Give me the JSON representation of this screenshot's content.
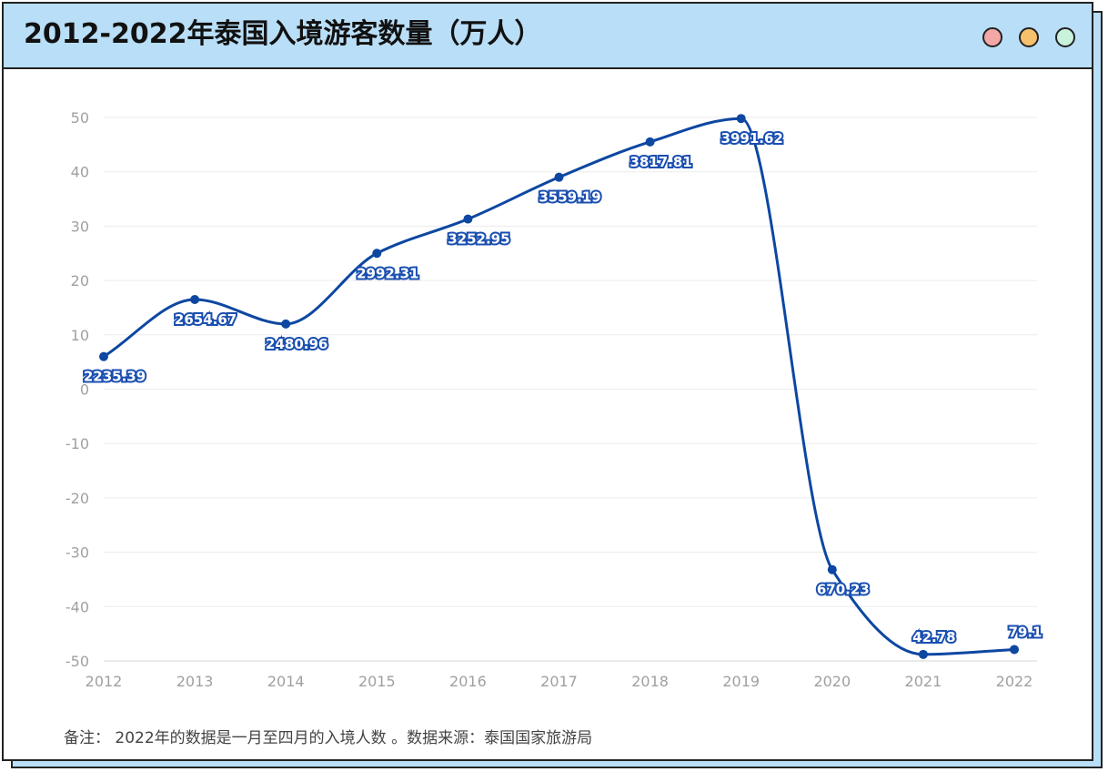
{
  "header": {
    "title": "2012-2022年泰国入境游客数量（万人）",
    "window_dots": [
      {
        "name": "close-dot",
        "color": "#f4a7a7"
      },
      {
        "name": "minimize-dot",
        "color": "#f6c06d"
      },
      {
        "name": "maximize-dot",
        "color": "#c8f2dc"
      }
    ]
  },
  "footnote": "备注： 2022年的数据是一月至四月的入境人数 。数据来源：泰国国家旅游局",
  "colors": {
    "header_bg": "#b9def7",
    "line": "#0d47a1",
    "grid": "#ebebeb"
  },
  "chart_data": {
    "type": "line",
    "title": "2012-2022年泰国入境游客数量（万人）",
    "x": [
      "2012",
      "2013",
      "2014",
      "2015",
      "2016",
      "2017",
      "2018",
      "2019",
      "2020",
      "2021",
      "2022"
    ],
    "series": [
      {
        "values": [
          6,
          16.5,
          12,
          25,
          31.3,
          39,
          45.5,
          49.8,
          -33.2,
          -48.8,
          -47.9
        ],
        "labels": [
          "2235.39",
          "2654.67",
          "2480.96",
          "2992.31",
          "3252.95",
          "3559.19",
          "3817.81",
          "3991.62",
          "670.23",
          "42.78",
          "79.1"
        ]
      }
    ],
    "ylim": [
      -50,
      50
    ],
    "yticks": [
      50,
      40,
      30,
      20,
      10,
      0,
      -10,
      -20,
      -30,
      -40,
      -50
    ],
    "grid": true,
    "smooth": true
  }
}
